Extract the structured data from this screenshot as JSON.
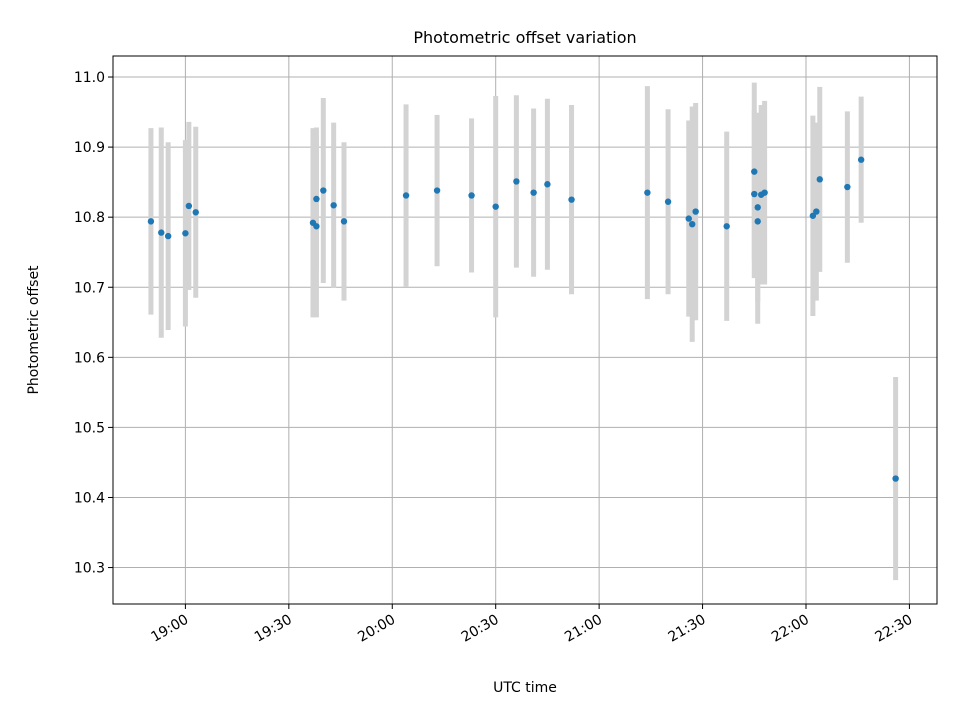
{
  "chart_data": {
    "type": "scatter",
    "title": "Photometric offset variation",
    "xlabel": "UTC time",
    "ylabel": "Photometric offset",
    "xlim": [
      "18:39",
      "22:38"
    ],
    "ylim": [
      10.248,
      11.03
    ],
    "grid": true,
    "x_ticks": [
      "19:00",
      "19:30",
      "20:00",
      "20:30",
      "21:00",
      "21:30",
      "22:00",
      "22:30"
    ],
    "y_ticks": [
      10.3,
      10.4,
      10.5,
      10.6,
      10.7,
      10.8,
      10.9,
      11.0
    ],
    "y_tick_labels": [
      "10.3",
      "10.4",
      "10.5",
      "10.6",
      "10.7",
      "10.8",
      "10.9",
      "11.0"
    ],
    "colors": {
      "point": "#1f77b4",
      "errorbar": "#d3d3d3",
      "grid": "#b0b0b0"
    },
    "points": [
      {
        "x": "18:50",
        "y": 10.794,
        "err": 0.133
      },
      {
        "x": "18:53",
        "y": 10.778,
        "err": 0.15
      },
      {
        "x": "18:55",
        "y": 10.773,
        "err": 0.134
      },
      {
        "x": "19:00",
        "y": 10.777,
        "err": 0.133
      },
      {
        "x": "19:01",
        "y": 10.816,
        "err": 0.12
      },
      {
        "x": "19:03",
        "y": 10.807,
        "err": 0.122
      },
      {
        "x": "19:37",
        "y": 10.792,
        "err": 0.135
      },
      {
        "x": "19:38",
        "y": 10.787,
        "err": 0.13
      },
      {
        "x": "19:38",
        "y": 10.826,
        "err": 0.102
      },
      {
        "x": "19:40",
        "y": 10.838,
        "err": 0.132
      },
      {
        "x": "19:43",
        "y": 10.817,
        "err": 0.118
      },
      {
        "x": "19:46",
        "y": 10.794,
        "err": 0.113
      },
      {
        "x": "20:04",
        "y": 10.831,
        "err": 0.13
      },
      {
        "x": "20:13",
        "y": 10.838,
        "err": 0.108
      },
      {
        "x": "20:23",
        "y": 10.831,
        "err": 0.11
      },
      {
        "x": "20:30",
        "y": 10.815,
        "err": 0.158
      },
      {
        "x": "20:36",
        "y": 10.851,
        "err": 0.123
      },
      {
        "x": "20:41",
        "y": 10.835,
        "err": 0.12
      },
      {
        "x": "20:45",
        "y": 10.847,
        "err": 0.122
      },
      {
        "x": "20:52",
        "y": 10.825,
        "err": 0.135
      },
      {
        "x": "21:14",
        "y": 10.835,
        "err": 0.152
      },
      {
        "x": "21:20",
        "y": 10.822,
        "err": 0.132
      },
      {
        "x": "21:26",
        "y": 10.798,
        "err": 0.14
      },
      {
        "x": "21:27",
        "y": 10.79,
        "err": 0.168
      },
      {
        "x": "21:28",
        "y": 10.808,
        "err": 0.155
      },
      {
        "x": "21:37",
        "y": 10.787,
        "err": 0.135
      },
      {
        "x": "21:45",
        "y": 10.833,
        "err": 0.12
      },
      {
        "x": "21:45",
        "y": 10.865,
        "err": 0.127
      },
      {
        "x": "21:46",
        "y": 10.814,
        "err": 0.135
      },
      {
        "x": "21:46",
        "y": 10.794,
        "err": 0.146
      },
      {
        "x": "21:47",
        "y": 10.832,
        "err": 0.128
      },
      {
        "x": "21:48",
        "y": 10.835,
        "err": 0.131
      },
      {
        "x": "22:02",
        "y": 10.802,
        "err": 0.143
      },
      {
        "x": "22:03",
        "y": 10.808,
        "err": 0.127
      },
      {
        "x": "22:04",
        "y": 10.854,
        "err": 0.132
      },
      {
        "x": "22:12",
        "y": 10.843,
        "err": 0.108
      },
      {
        "x": "22:16",
        "y": 10.882,
        "err": 0.09
      },
      {
        "x": "22:26",
        "y": 10.427,
        "err": 0.145
      }
    ]
  }
}
